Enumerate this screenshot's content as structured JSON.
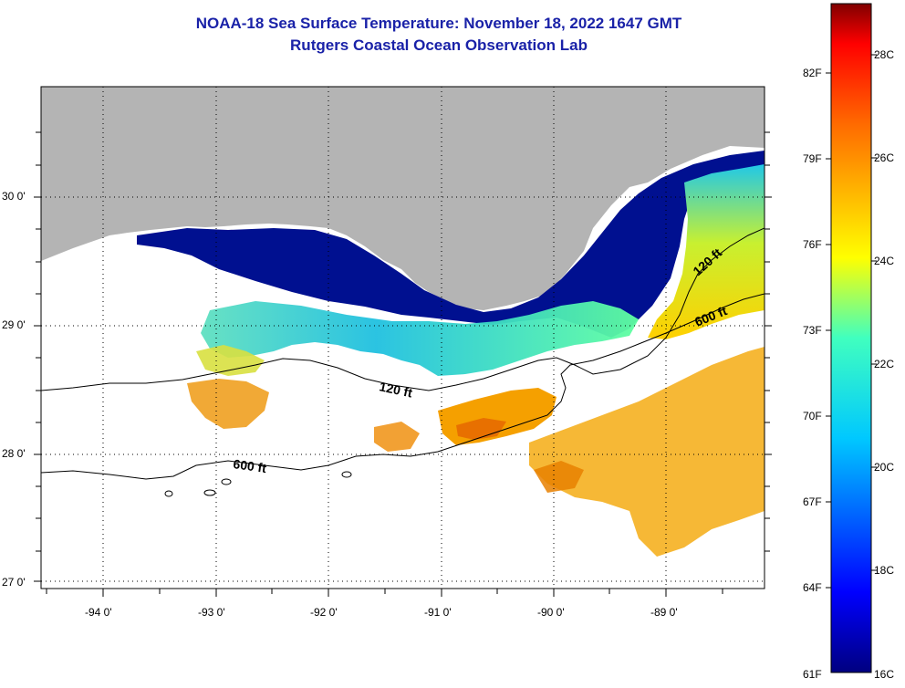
{
  "title": {
    "line1": "NOAA-18 Sea Surface Temperature:  November 18, 2022 1647 GMT",
    "line2": "Rutgers Coastal Ocean Observation Lab"
  },
  "axes": {
    "lat_labels": [
      "30 0'",
      "29 0'",
      "28 0'",
      "27 0'"
    ],
    "lon_labels": [
      "-94 0'",
      "-93 0'",
      "-92 0'",
      "-91 0'",
      "-90 0'",
      "-89 0'"
    ]
  },
  "contours": {
    "label_120": "120 ft",
    "label_600": "600 ft"
  },
  "colorbar": {
    "fahrenheit": [
      "82F",
      "79F",
      "76F",
      "73F",
      "70F",
      "67F",
      "64F",
      "61F"
    ],
    "celsius": [
      "28C",
      "26C",
      "24C",
      "22C",
      "20C",
      "18C",
      "16C"
    ]
  },
  "colors": {
    "land": "#b4b4b4",
    "cold": "#00108c",
    "warm": "#f07800",
    "title": "#1a22a8"
  }
}
